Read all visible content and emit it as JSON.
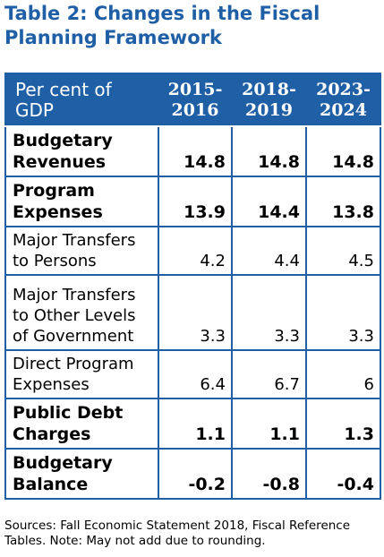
{
  "title": {
    "line1": "Table 2: Changes in the Fiscal",
    "line2": "Planning Framework"
  },
  "table": {
    "header": {
      "label_line1": "Per cent of",
      "label_line2": "GDP",
      "years": [
        {
          "line1": "2015-",
          "line2": "2016"
        },
        {
          "line1": "2018-",
          "line2": "2019"
        },
        {
          "line1": "2023-",
          "line2": "2024"
        }
      ]
    },
    "rows": [
      {
        "label": [
          "Budgetary",
          "Revenues"
        ],
        "values": [
          "14.8",
          "14.8",
          "14.8"
        ],
        "bold": true
      },
      {
        "label": [
          "Program",
          "Expenses"
        ],
        "values": [
          "13.9",
          "14.4",
          "13.8"
        ],
        "bold": true
      },
      {
        "label": [
          "Major Transfers",
          "to Persons"
        ],
        "values": [
          "4.2",
          "4.4",
          "4.5"
        ],
        "bold": false
      },
      {
        "label": [
          "Major Transfers",
          "to Other Levels",
          "of Government"
        ],
        "values": [
          "3.3",
          "3.3",
          "3.3"
        ],
        "bold": false
      },
      {
        "label": [
          "Direct Program",
          "Expenses"
        ],
        "values": [
          "6.4",
          "6.7",
          "6"
        ],
        "bold": false
      },
      {
        "label": [
          "Public Debt",
          "Charges"
        ],
        "values": [
          "1.1",
          "1.1",
          "1.3"
        ],
        "bold": true
      },
      {
        "label": [
          "Budgetary",
          "Balance"
        ],
        "values": [
          "-0.2",
          "-0.8",
          "-0.4"
        ],
        "bold": true
      }
    ]
  },
  "footnote": {
    "line1": "Sources: Fall Economic Statement 2018, Fiscal Reference",
    "line2": "Tables.  Note: May not add due to rounding."
  },
  "colors": {
    "accent": "#1f5fa6",
    "header_text": "#ffffff",
    "body_text": "#000000"
  }
}
